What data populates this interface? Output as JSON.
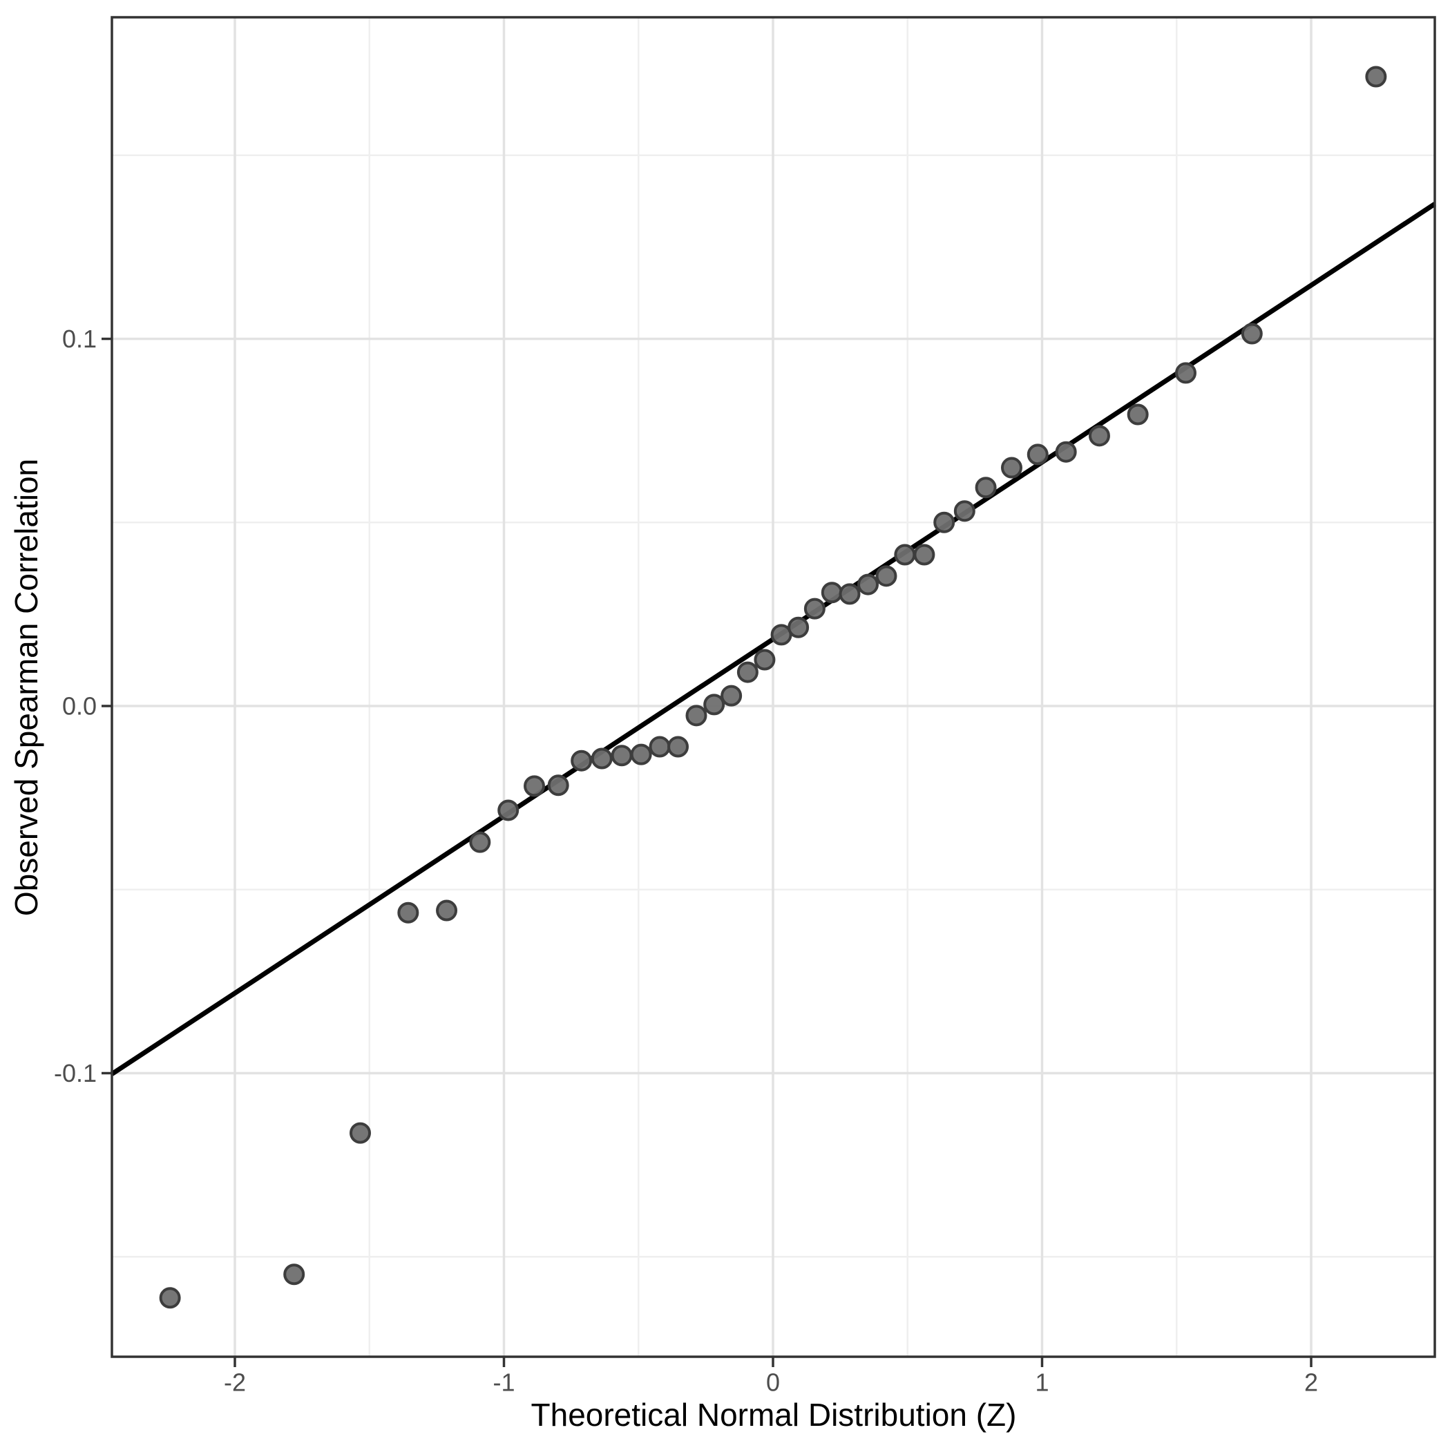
{
  "chart_data": {
    "type": "scatter",
    "title": "",
    "xlabel": "Theoretical Normal Distribution (Z)",
    "ylabel": "Observed Spearman Correlation",
    "xlim": [
      -2.46,
      2.46
    ],
    "ylim": [
      -0.177,
      0.188
    ],
    "grid": "major+minor",
    "legend": "none",
    "x_ticks": [
      {
        "value": -2,
        "label": "-2"
      },
      {
        "value": -1,
        "label": "-1"
      },
      {
        "value": 0,
        "label": "0"
      },
      {
        "value": 1,
        "label": "1"
      },
      {
        "value": 2,
        "label": "2"
      }
    ],
    "y_ticks": [
      {
        "value": 0.1,
        "label": "0.1"
      },
      {
        "value": 0.0,
        "label": "0.0"
      },
      {
        "value": -0.1,
        "label": "-0.1"
      }
    ],
    "x_minor_ticks": [
      -1.5,
      -0.5,
      0.5,
      1.5
    ],
    "y_minor_ticks": [
      0.15,
      0.05,
      -0.05,
      -0.15
    ],
    "qq_line": {
      "slope": 0.0482,
      "intercept": 0.0182
    },
    "series": [
      {
        "name": "sample-quantiles",
        "points": [
          [
            -2.241,
            -0.1612
          ],
          [
            -1.78,
            -0.1548
          ],
          [
            -1.534,
            -0.1163
          ],
          [
            -1.356,
            -0.0563
          ],
          [
            -1.213,
            -0.0557
          ],
          [
            -1.089,
            -0.0371
          ],
          [
            -0.984,
            -0.0284
          ],
          [
            -0.887,
            -0.0218
          ],
          [
            -0.798,
            -0.0216
          ],
          [
            -0.712,
            -0.0149
          ],
          [
            -0.636,
            -0.0143
          ],
          [
            -0.562,
            -0.0135
          ],
          [
            -0.49,
            -0.0132
          ],
          [
            -0.421,
            -0.0111
          ],
          [
            -0.353,
            -0.0111
          ],
          [
            -0.285,
            -0.0026
          ],
          [
            -0.219,
            0.0004
          ],
          [
            -0.155,
            0.0028
          ],
          [
            -0.094,
            0.0092
          ],
          [
            -0.031,
            0.0126
          ],
          [
            0.031,
            0.0194
          ],
          [
            0.094,
            0.0214
          ],
          [
            0.155,
            0.0265
          ],
          [
            0.219,
            0.0309
          ],
          [
            0.285,
            0.0305
          ],
          [
            0.353,
            0.0331
          ],
          [
            0.421,
            0.0354
          ],
          [
            0.49,
            0.0412
          ],
          [
            0.562,
            0.0412
          ],
          [
            0.636,
            0.05
          ],
          [
            0.712,
            0.0531
          ],
          [
            0.791,
            0.0595
          ],
          [
            0.887,
            0.0649
          ],
          [
            0.984,
            0.0685
          ],
          [
            1.089,
            0.0692
          ],
          [
            1.213,
            0.0736
          ],
          [
            1.356,
            0.0794
          ],
          [
            1.534,
            0.0907
          ],
          [
            1.78,
            0.1014
          ],
          [
            2.241,
            0.1714
          ]
        ]
      }
    ],
    "colors": {
      "point_fill": "#6f6f6f",
      "point_stroke": "#3d3d3d",
      "qq_line": "#000000",
      "panel_border": "#333333",
      "tick_mark": "#333333",
      "tick_label": "#4d4d4d",
      "axis_title": "#000000",
      "grid_major": "#e2e2e2",
      "grid_minor": "#efefef",
      "panel_background": "#ffffff"
    }
  }
}
